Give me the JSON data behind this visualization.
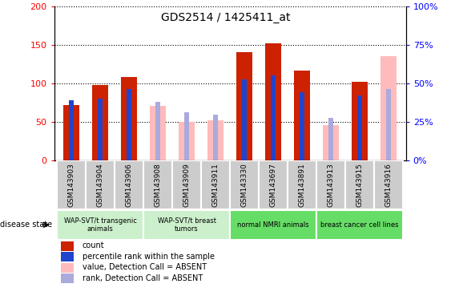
{
  "title": "GDS2514 / 1425411_at",
  "samples": [
    "GSM143903",
    "GSM143904",
    "GSM143906",
    "GSM143908",
    "GSM143909",
    "GSM143911",
    "GSM143330",
    "GSM143697",
    "GSM143891",
    "GSM143913",
    "GSM143915",
    "GSM143916"
  ],
  "count_values": [
    72,
    98,
    108,
    0,
    0,
    0,
    140,
    152,
    116,
    0,
    102,
    0
  ],
  "rank_values": [
    78,
    80,
    92,
    0,
    0,
    0,
    105,
    110,
    88,
    0,
    84,
    0
  ],
  "absent_value_values": [
    0,
    0,
    0,
    70,
    50,
    52,
    0,
    0,
    0,
    46,
    0,
    135
  ],
  "absent_rank_values": [
    0,
    0,
    0,
    76,
    62,
    59,
    0,
    0,
    0,
    55,
    0,
    92
  ],
  "groups": [
    {
      "label": "WAP-SVT/t transgenic\nanimals",
      "start": 0,
      "end": 3,
      "color": "#ccf0cc"
    },
    {
      "label": "WAP-SVT/t breast\ntumors",
      "start": 3,
      "end": 6,
      "color": "#ccf0cc"
    },
    {
      "label": "normal NMRI animals",
      "start": 6,
      "end": 9,
      "color": "#66dd66"
    },
    {
      "label": "breast cancer cell lines",
      "start": 9,
      "end": 12,
      "color": "#66dd66"
    }
  ],
  "ylim_left": [
    0,
    200
  ],
  "ylim_right": [
    0,
    100
  ],
  "yticks_left": [
    0,
    50,
    100,
    150,
    200
  ],
  "yticks_right": [
    0,
    25,
    50,
    75,
    100
  ],
  "count_color": "#cc2200",
  "rank_color": "#2244cc",
  "absent_value_color": "#ffbbbb",
  "absent_rank_color": "#aaaadd",
  "bar_width": 0.55,
  "rank_bar_width": 0.15,
  "legend_items": [
    {
      "label": "count",
      "color": "#cc2200"
    },
    {
      "label": "percentile rank within the sample",
      "color": "#2244cc"
    },
    {
      "label": "value, Detection Call = ABSENT",
      "color": "#ffbbbb"
    },
    {
      "label": "rank, Detection Call = ABSENT",
      "color": "#aaaadd"
    }
  ],
  "tick_label_bg": "#cccccc",
  "disease_state_label": "disease state",
  "right_axis_fmt": [
    "%",
    "%",
    "%",
    "%",
    "%"
  ]
}
